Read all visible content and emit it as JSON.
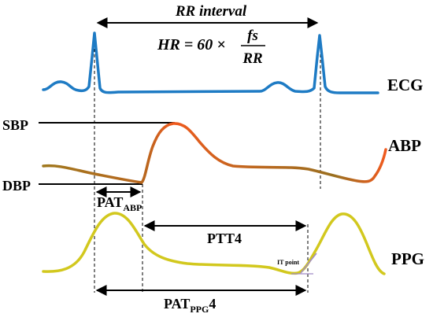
{
  "rr_interval": {
    "label": "RR interval"
  },
  "hr_formula": {
    "lhs": "HR = 60 ×",
    "numerator": "fs",
    "denominator": "RR"
  },
  "signals": {
    "ecg": "ECG",
    "abp": "ABP",
    "ppg": "PPG"
  },
  "levels": {
    "sbp": "SBP",
    "dbp": "DBP"
  },
  "intervals": {
    "pat_abp": {
      "base": "PAT",
      "sub": "ABP",
      "suffix": ""
    },
    "ptt": {
      "label": "PTT4"
    },
    "pat_ppg": {
      "base": "PAT",
      "sub": "PPG",
      "suffix": "4"
    }
  },
  "annotations": {
    "it_point": "IT point"
  },
  "colors": {
    "ecg": "#1e7bc4",
    "abp_low": "#a0781e",
    "abp_high": "#f05a1e",
    "ppg": "#d2c81e",
    "ppg_tail": "#a08cc8"
  }
}
